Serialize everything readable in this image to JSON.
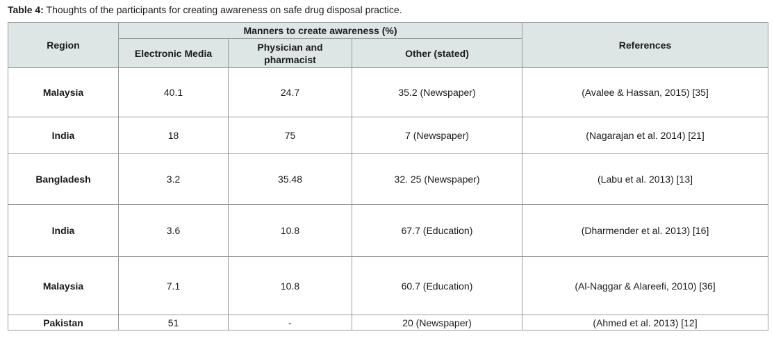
{
  "caption": {
    "label": "Table 4:",
    "text": "Thoughts of the participants for creating awareness on safe drug disposal practice."
  },
  "table": {
    "headers": {
      "region": "Region",
      "group": "Manners to create awareness (%)",
      "electronic_media": "Electronic Media",
      "physician_pharmacist": "Physician and pharmacist",
      "other": "Other (stated)",
      "references": "References"
    },
    "rows": [
      {
        "region": "Malaysia",
        "electronic_media": "40.1",
        "physician_pharmacist": "24.7",
        "other": "35.2 (Newspaper)",
        "reference": "(Avalee & Hassan, 2015) [35]"
      },
      {
        "region": "India",
        "electronic_media": "18",
        "physician_pharmacist": "75",
        "other": "7 (Newspaper)",
        "reference": "(Nagarajan et al. 2014) [21]"
      },
      {
        "region": "Bangladesh",
        "electronic_media": "3.2",
        "physician_pharmacist": "35.48",
        "other": "32. 25 (Newspaper)",
        "reference": "(Labu et al. 2013) [13]"
      },
      {
        "region": "India",
        "electronic_media": "3.6",
        "physician_pharmacist": "10.8",
        "other": "67.7 (Education)",
        "reference": "(Dharmender et al. 2013) [16]"
      },
      {
        "region": "Malaysia",
        "electronic_media": "7.1",
        "physician_pharmacist": "10.8",
        "other": "60.7 (Education)",
        "reference": "(Al-Naggar & Alareefi, 2010) [36]"
      },
      {
        "region": "Pakistan",
        "electronic_media": "51",
        "physician_pharmacist": "-",
        "other": "20 (Newspaper)",
        "reference": "(Ahmed et al. 2013) [12]"
      }
    ]
  }
}
